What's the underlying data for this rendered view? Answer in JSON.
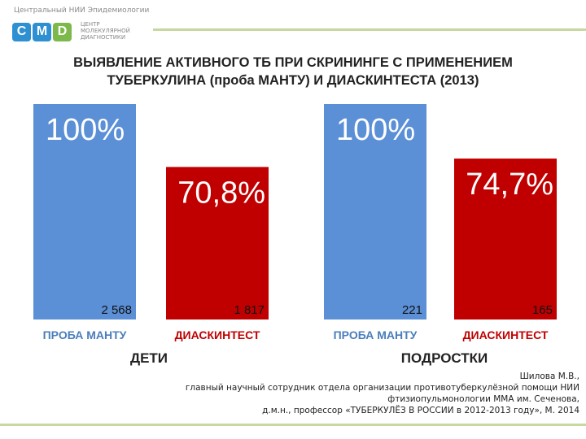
{
  "header": {
    "org_name": "Центральный НИИ Эпидемиологии",
    "logo_letters": [
      "C",
      "M",
      "D"
    ],
    "logo_sub": [
      "ЦЕНТР",
      "МОЛЕКУЛЯРНОЙ",
      "ДИАГНОСТИКИ"
    ]
  },
  "colors": {
    "blue": "#5b8fd6",
    "red": "#c00000",
    "text_red": "#c00000",
    "label_blue": "#4a7ebb",
    "accent_line": "#c6d89f",
    "logo_blue": "#2e8fd1",
    "logo_green": "#7cb84a"
  },
  "title_lines": [
    "ВЫЯВЛЕНИЕ АКТИВНОГО ТБ ПРИ СКРИНИНГЕ С ПРИМЕНЕНИЕМ",
    "ТУБЕРКУЛИНА (проба МАНТУ) И ДИАСКИНТЕСТА (2013)"
  ],
  "chart_data": {
    "type": "bar",
    "title": "ВЫЯВЛЕНИЕ АКТИВНОГО ТБ ПРИ СКРИНИНГЕ С ПРИМЕНЕНИЕМ ТУБЕРКУЛИНА (проба МАНТУ) И ДИАСКИНТЕСТА (2013)",
    "ylim": [
      0,
      100
    ],
    "groups": [
      {
        "name": "ДЕТИ",
        "bars": [
          {
            "label": "ПРОБА МАНТУ",
            "percent": 100,
            "percent_label": "100%",
            "count_label": "2 568",
            "color": "blue"
          },
          {
            "label": "ДИАСКИНТЕСТ",
            "percent": 70.8,
            "percent_label": "70,8%",
            "count_label": "1 817",
            "color": "red"
          }
        ]
      },
      {
        "name": "ПОДРОСТКИ",
        "bars": [
          {
            "label": "ПРОБА МАНТУ",
            "percent": 100,
            "percent_label": "100%",
            "count_label": "221",
            "color": "blue"
          },
          {
            "label": "ДИАСКИНТЕСТ",
            "percent": 74.7,
            "percent_label": "74,7%",
            "count_label": "165",
            "color": "red"
          }
        ]
      }
    ]
  },
  "credit_lines": [
    "Шилова М.В.,",
    "главный научный сотрудник отдела организации противотуберкулёзной помощи НИИ",
    "фтизиопульмонологии ММА им. Сеченова,",
    "д.м.н., профессор «ТУБЕРКУЛЁЗ В РОССИИ в 2012-2013 году», М. 2014"
  ]
}
